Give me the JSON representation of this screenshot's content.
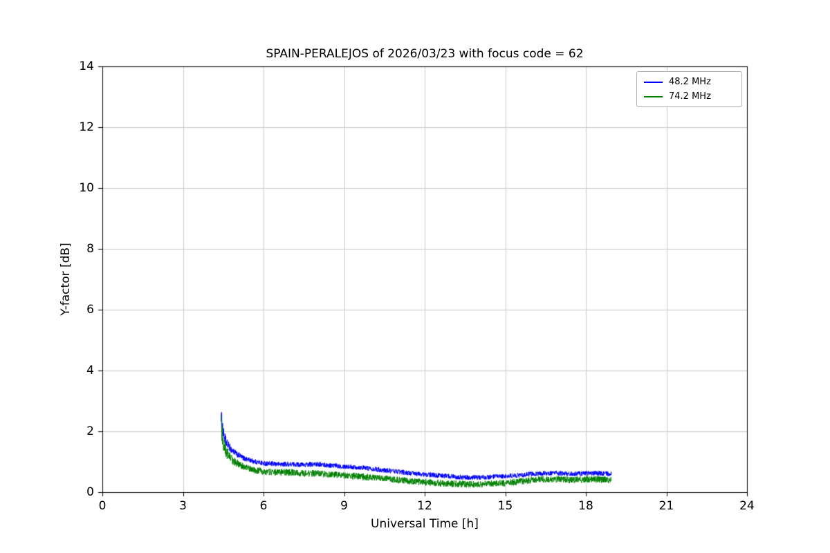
{
  "chart_data": {
    "type": "line",
    "title": "SPAIN-PERALEJOS of 2026/03/23 with focus code = 62",
    "xlabel": "Universal Time [h]",
    "ylabel": "Y-factor [dB]",
    "xlim": [
      0,
      24
    ],
    "ylim": [
      0,
      14
    ],
    "xticks": [
      0,
      3,
      6,
      9,
      12,
      15,
      18,
      21,
      24
    ],
    "yticks": [
      0,
      2,
      4,
      6,
      8,
      10,
      12,
      14
    ],
    "grid": true,
    "grid_color": "#c8c8c8",
    "legend_position": "upper right",
    "series": [
      {
        "name": "48.2 MHz",
        "color": "#0000ff",
        "noise": 0.08,
        "x": [
          4.42,
          4.5,
          4.6,
          4.8,
          5.0,
          5.3,
          5.7,
          6.0,
          6.5,
          7.0,
          7.5,
          8.0,
          8.5,
          9.0,
          9.5,
          10.0,
          10.5,
          11.0,
          11.5,
          12.0,
          12.5,
          13.0,
          13.5,
          14.0,
          14.5,
          15.0,
          15.5,
          16.0,
          16.5,
          17.0,
          17.5,
          18.0,
          18.5,
          18.95
        ],
        "y": [
          2.55,
          1.95,
          1.65,
          1.4,
          1.25,
          1.1,
          1.0,
          0.95,
          0.92,
          0.92,
          0.9,
          0.92,
          0.88,
          0.85,
          0.82,
          0.78,
          0.72,
          0.68,
          0.62,
          0.58,
          0.55,
          0.52,
          0.48,
          0.48,
          0.5,
          0.52,
          0.55,
          0.6,
          0.62,
          0.62,
          0.6,
          0.62,
          0.62,
          0.6
        ]
      },
      {
        "name": "74.2 MHz",
        "color": "#008000",
        "noise": 0.11,
        "x": [
          4.42,
          4.5,
          4.6,
          4.8,
          5.0,
          5.3,
          5.7,
          6.0,
          6.5,
          7.0,
          7.5,
          8.0,
          8.5,
          9.0,
          9.5,
          10.0,
          10.5,
          11.0,
          11.5,
          12.0,
          12.5,
          13.0,
          13.5,
          14.0,
          14.5,
          15.0,
          15.5,
          16.0,
          16.5,
          17.0,
          17.5,
          18.0,
          18.5,
          18.95
        ],
        "y": [
          2.2,
          1.6,
          1.35,
          1.1,
          0.95,
          0.82,
          0.72,
          0.68,
          0.65,
          0.65,
          0.62,
          0.62,
          0.58,
          0.55,
          0.52,
          0.48,
          0.44,
          0.4,
          0.36,
          0.33,
          0.3,
          0.28,
          0.26,
          0.26,
          0.28,
          0.3,
          0.34,
          0.4,
          0.42,
          0.42,
          0.4,
          0.42,
          0.42,
          0.4
        ]
      }
    ]
  }
}
